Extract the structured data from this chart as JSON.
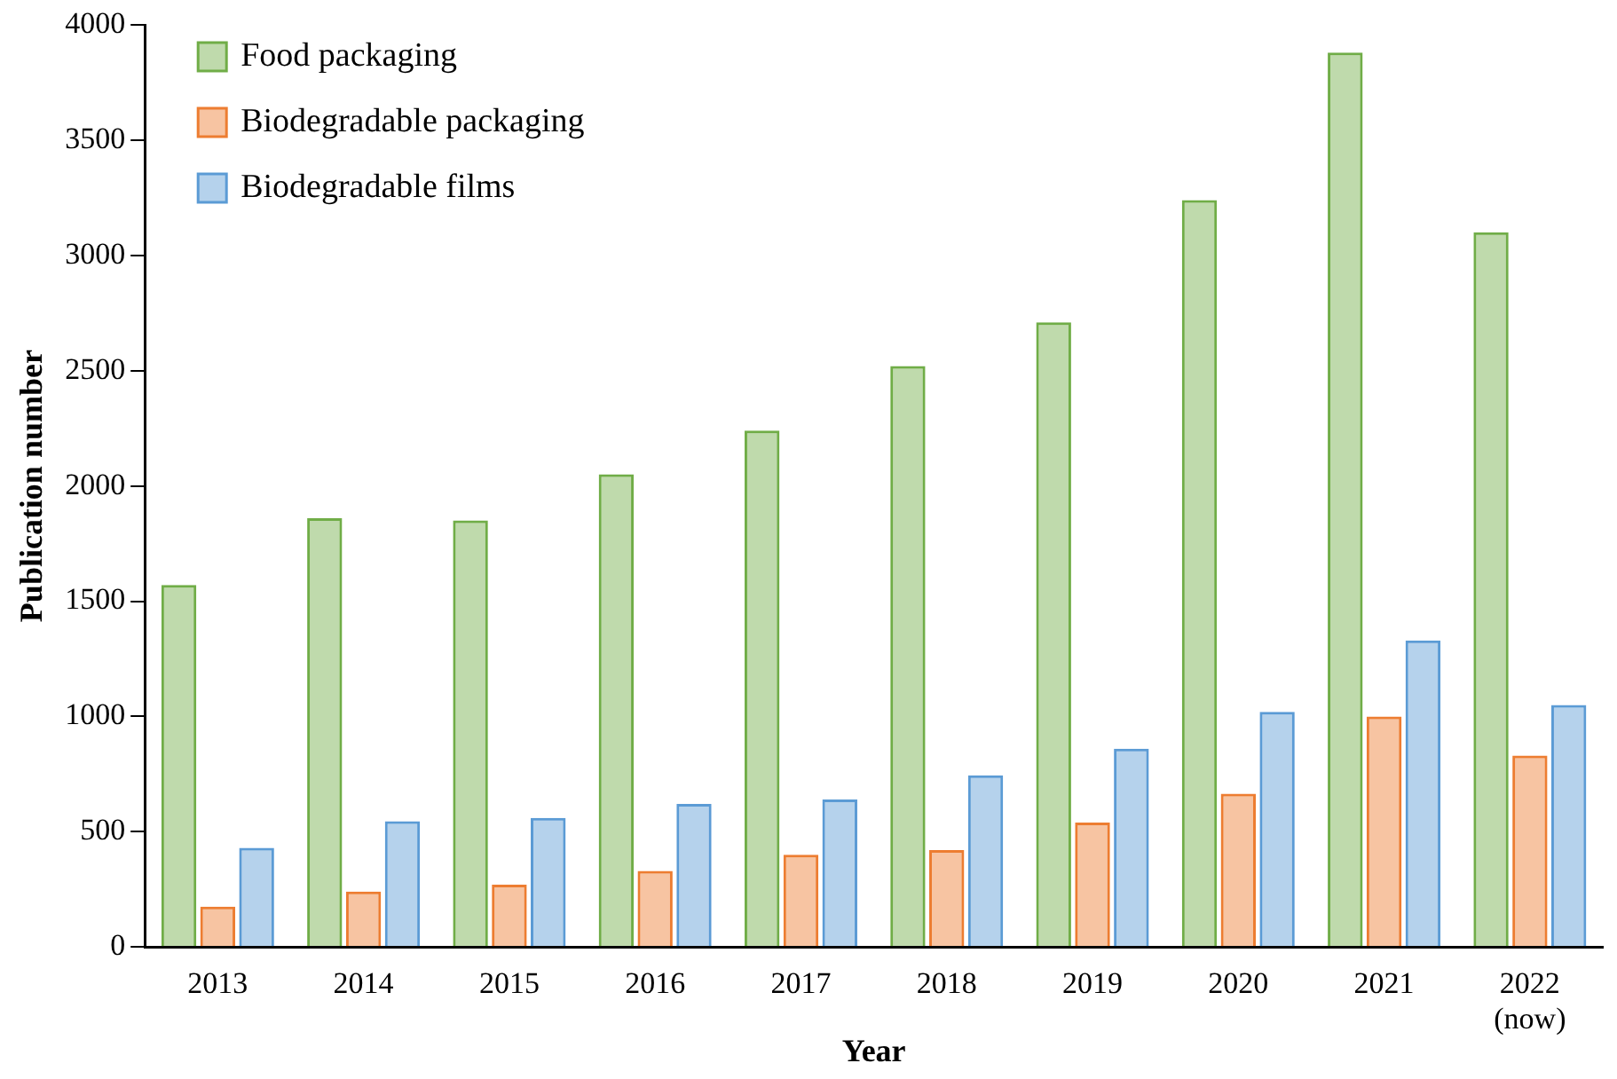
{
  "chart_data": {
    "type": "bar",
    "xlabel": "Year",
    "ylabel": "Publication number",
    "categories": [
      "2013",
      "2014",
      "2015",
      "2016",
      "2017",
      "2018",
      "2019",
      "2020",
      "2021",
      "2022\n(now)"
    ],
    "series": [
      {
        "name": "Food packaging",
        "color": "#70ad47",
        "values": [
          1570,
          1860,
          1850,
          2050,
          2240,
          2520,
          2710,
          3240,
          3880,
          3100
        ]
      },
      {
        "name": "Biodegradable packaging",
        "color": "#ed7d31",
        "values": [
          175,
          240,
          270,
          330,
          400,
          420,
          540,
          665,
          1000,
          830
        ]
      },
      {
        "name": "Biodegradable films",
        "color": "#5b9bd5",
        "values": [
          430,
          545,
          560,
          620,
          640,
          745,
          860,
          1020,
          1330,
          1050
        ]
      }
    ],
    "ylim": [
      0,
      4000
    ],
    "yticks": [
      0,
      500,
      1000,
      1500,
      2000,
      2500,
      3000,
      3500,
      4000
    ],
    "grid": false,
    "legend": "top left"
  }
}
